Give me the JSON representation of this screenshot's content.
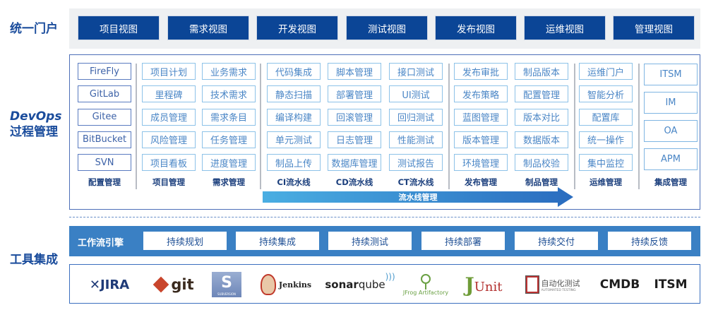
{
  "sections": {
    "portal": "统一门户",
    "devops_1": "DevOps",
    "devops_2": "过程管理",
    "tools": "工具集成"
  },
  "portal_views": [
    "项目视图",
    "需求视图",
    "开发视图",
    "测试视图",
    "发布视图",
    "运维视图",
    "管理视图"
  ],
  "columns": [
    {
      "label": "配置管理",
      "items": [
        "FireFly",
        "GitLab",
        "Gitee",
        "BitBucket",
        "SVN"
      ]
    },
    {
      "label": "项目管理",
      "items": [
        "项目计划",
        "里程碑",
        "成员管理",
        "风险管理",
        "项目看板"
      ]
    },
    {
      "label": "需求管理",
      "items": [
        "业务需求",
        "技术需求",
        "需求条目",
        "任务管理",
        "进度管理"
      ]
    },
    {
      "label": "CI流水线",
      "items": [
        "代码集成",
        "静态扫描",
        "编译构建",
        "单元测试",
        "制品上传"
      ]
    },
    {
      "label": "CD流水线",
      "items": [
        "脚本管理",
        "部署管理",
        "回滚管理",
        "日志管理",
        "数据库管理"
      ]
    },
    {
      "label": "CT流水线",
      "items": [
        "接口测试",
        "UI测试",
        "回归测试",
        "性能测试",
        "测试报告"
      ]
    },
    {
      "label": "发布管理",
      "items": [
        "发布审批",
        "发布策略",
        "蓝图管理",
        "版本管理",
        "环境管理"
      ]
    },
    {
      "label": "制品管理",
      "items": [
        "制品版本",
        "配置管理",
        "版本对比",
        "数据版本",
        "制品校验"
      ]
    },
    {
      "label": "运维管理",
      "items": [
        "运维门户",
        "智能分析",
        "配置库",
        "统一操作",
        "集中监控"
      ]
    },
    {
      "label": "集成管理",
      "items": [
        "ITSM",
        "IM",
        "OA",
        "APM"
      ]
    }
  ],
  "pipeline_arrow": "流水线管理",
  "workflow": {
    "label": "工作流引擎",
    "items": [
      "持续规划",
      "持续集成",
      "持续测试",
      "持续部署",
      "持续交付",
      "持续反馈"
    ]
  },
  "tool_logos": {
    "jira": "JIRA",
    "git": "git",
    "svn": "SUBVERSION",
    "jenkins": "Jenkins",
    "sonar1": "sonar",
    "sonar2": "qube",
    "jfrog": "JFrog Artifactory",
    "junit1": "J",
    "junit2": "Unit",
    "auto1": "自动化测试",
    "auto2": "AUTOMATED TESTING",
    "cmdb": "CMDB",
    "itsm": "ITSM"
  },
  "colors": {
    "portal_button": "#0b4596",
    "workflow_band": "#3a80c4",
    "heading": "#1a4c9c",
    "cell_border": "#8dc2e8"
  }
}
